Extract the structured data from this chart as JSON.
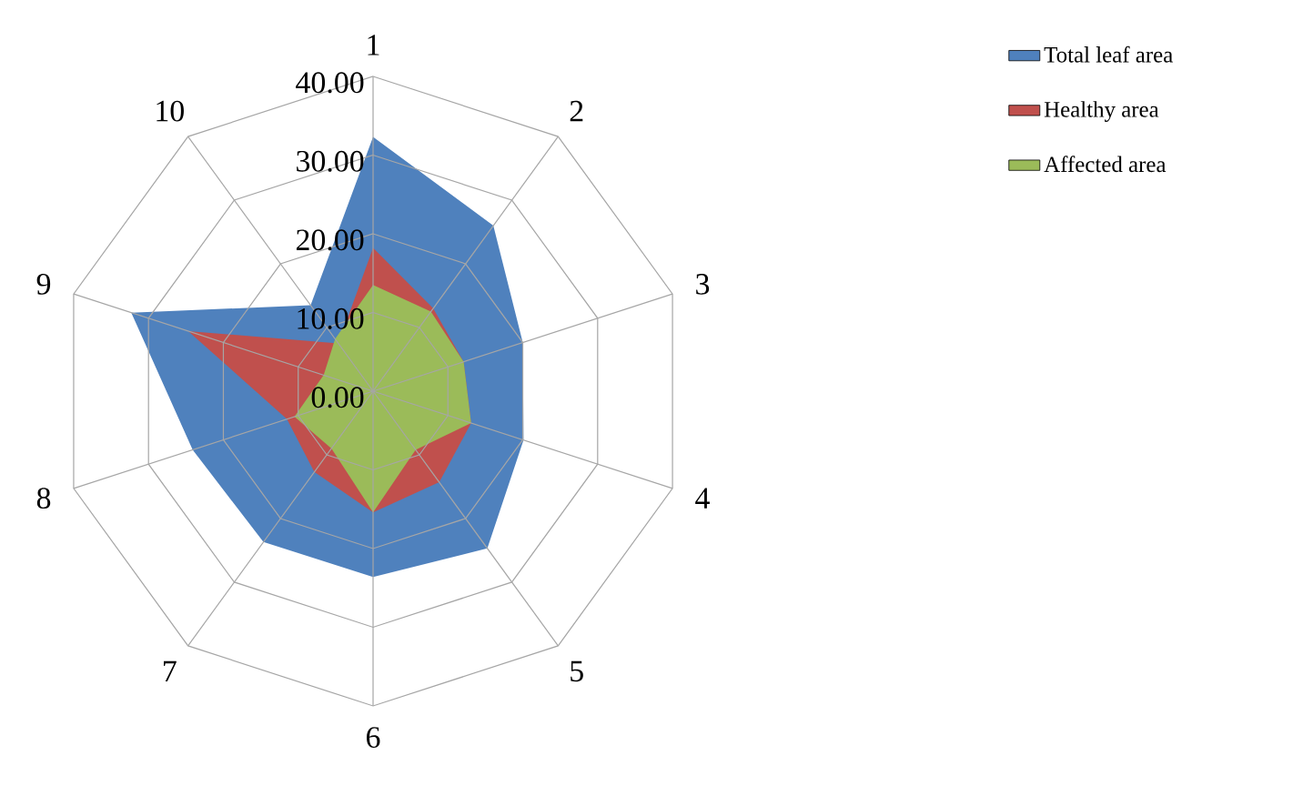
{
  "chart_data": {
    "type": "radar",
    "categories": [
      "1",
      "2",
      "3",
      "4",
      "5",
      "6",
      "7",
      "8",
      "9",
      "10"
    ],
    "ylim": [
      0,
      40
    ],
    "yticks": [
      {
        "value": 0,
        "label": "0.00"
      },
      {
        "value": 10,
        "label": "10.00"
      },
      {
        "value": 20,
        "label": "20.00"
      },
      {
        "value": 30,
        "label": "30.00"
      },
      {
        "value": 40,
        "label": "40.00"
      }
    ],
    "grid": true,
    "legend": "right",
    "series": [
      {
        "name": "Total leaf area",
        "color": "#4f81bd",
        "type": "area",
        "values": [
          32.3,
          26,
          20,
          20.1,
          24.7,
          23.6,
          23.7,
          24.1,
          32.3,
          13.5
        ]
      },
      {
        "name": "Healthy area",
        "color": "#c0504d",
        "type": "area",
        "values": [
          18.2,
          13,
          12.1,
          13.1,
          14.3,
          15.4,
          12.7,
          11.5,
          24.7,
          7.5
        ]
      },
      {
        "name": "Affected area",
        "color": "#9bbb59",
        "type": "area",
        "values": [
          13.5,
          12.5,
          12.1,
          13.1,
          9.2,
          15.4,
          9,
          10.5,
          6.6,
          8.2
        ]
      }
    ]
  }
}
